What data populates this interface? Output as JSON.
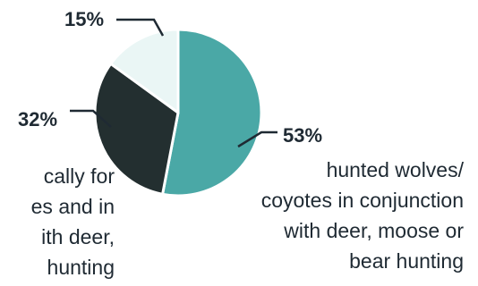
{
  "chart_data": {
    "type": "pie",
    "categories": [
      "hunted wolves/ coyotes in conjunction with deer, moose or bear hunting",
      "",
      ""
    ],
    "values": [
      53,
      32,
      15
    ],
    "colors": [
      "#4aa8a6",
      "#232f30",
      "#eaf6f5"
    ],
    "stroke_color": "#ffffff",
    "leader_color": "#1f2a33",
    "title": ""
  },
  "labels": {
    "pct_53": "53%",
    "pct_32": "32%",
    "pct_15": "15%"
  },
  "descriptions": {
    "right": [
      "hunted wolves/",
      "coyotes in conjunction",
      "with deer, moose or",
      "bear hunting"
    ],
    "left_partial": [
      "cally for",
      "es and in",
      "ith deer,",
      "hunting"
    ]
  }
}
